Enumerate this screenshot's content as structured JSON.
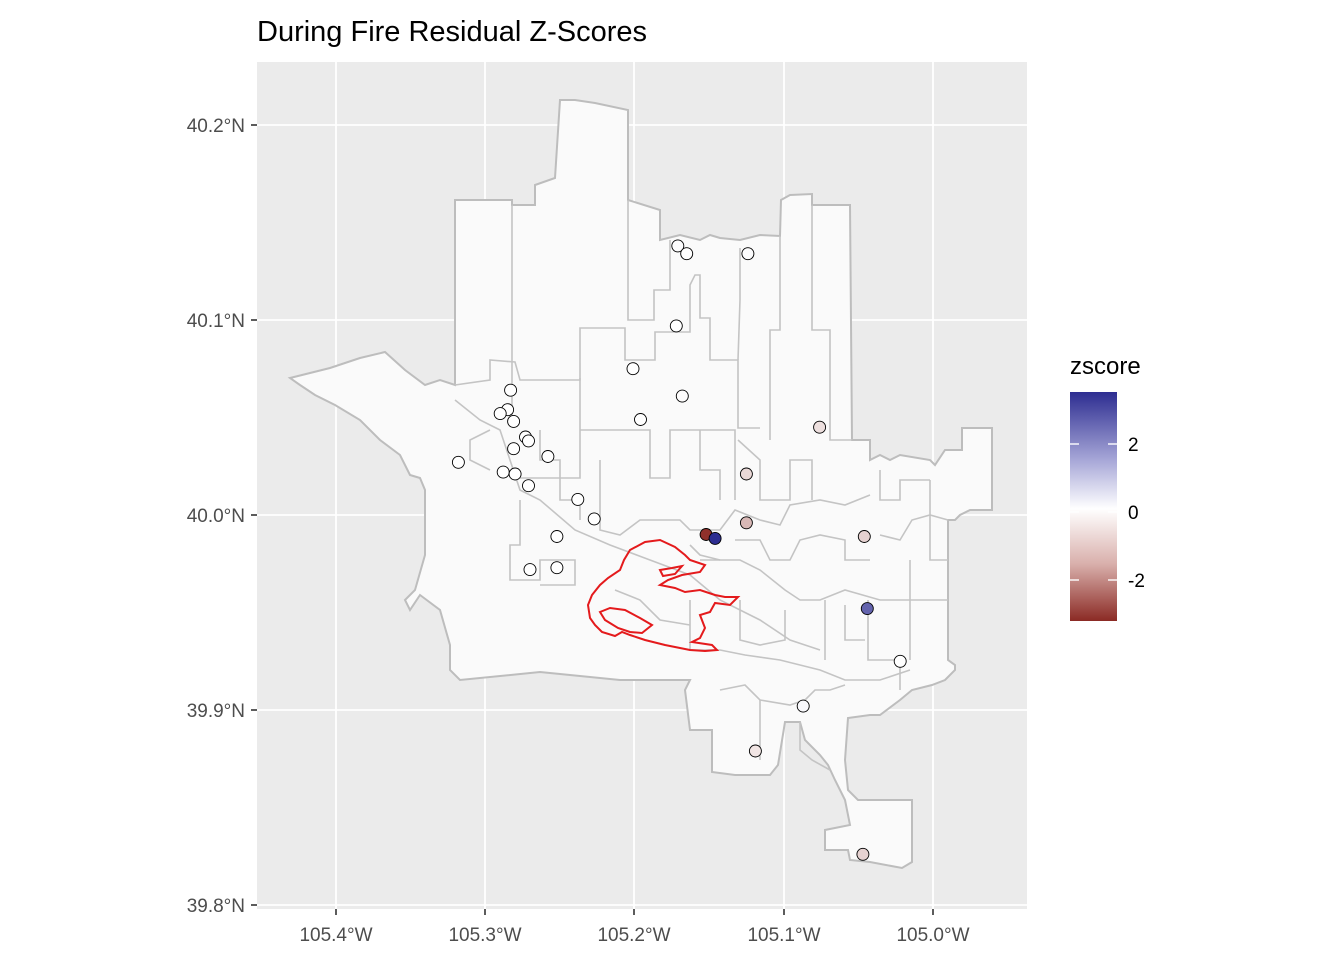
{
  "title": "During Fire Residual Z-Scores",
  "colors": {
    "panel": "#EBEBEB",
    "grid": "#FFFFFF",
    "land": "#FAFAFA",
    "boundary": "#BDBDBD",
    "fire": "#E41A1C",
    "low": "#8B2A24",
    "mid": "#FFFFFF",
    "high": "#2D2D91"
  },
  "chart_data": {
    "type": "map-points",
    "x_axis": {
      "range": [
        -105.455,
        -104.942
      ],
      "ticks": [
        -105.4,
        -105.3,
        -105.2,
        -105.1,
        -105.0
      ],
      "tick_labels": [
        "105.4°W",
        "105.3°W",
        "105.2°W",
        "105.1°W",
        "105.0°W"
      ]
    },
    "y_axis": {
      "range": [
        39.798,
        40.231
      ],
      "ticks": [
        39.8,
        39.9,
        40.0,
        40.1,
        40.2
      ],
      "tick_labels": [
        "39.8°N",
        "39.9°N",
        "40.0°N",
        "40.1°N",
        "40.2°N"
      ]
    },
    "legend": {
      "title": "zscore",
      "position": "right",
      "range": [
        -3.3,
        3.5
      ],
      "breaks": [
        2,
        0,
        -2
      ],
      "break_labels": [
        "2",
        "0",
        "-2"
      ]
    },
    "points": [
      {
        "lon": -105.171,
        "lat": 40.138,
        "z": 0.05
      },
      {
        "lon": -105.165,
        "lat": 40.134,
        "z": 0.0
      },
      {
        "lon": -105.124,
        "lat": 40.134,
        "z": 0.05
      },
      {
        "lon": -105.172,
        "lat": 40.097,
        "z": 0.0
      },
      {
        "lon": -105.201,
        "lat": 40.075,
        "z": 0.0
      },
      {
        "lon": -105.168,
        "lat": 40.061,
        "z": -0.05
      },
      {
        "lon": -105.283,
        "lat": 40.064,
        "z": 0.0
      },
      {
        "lon": -105.285,
        "lat": 40.054,
        "z": 0.0
      },
      {
        "lon": -105.29,
        "lat": 40.052,
        "z": 0.0
      },
      {
        "lon": -105.281,
        "lat": 40.048,
        "z": 0.0
      },
      {
        "lon": -105.196,
        "lat": 40.049,
        "z": 0.0
      },
      {
        "lon": -105.273,
        "lat": 40.04,
        "z": 0.0
      },
      {
        "lon": -105.271,
        "lat": 40.038,
        "z": 0.0
      },
      {
        "lon": -105.281,
        "lat": 40.034,
        "z": 0.0
      },
      {
        "lon": -105.258,
        "lat": 40.03,
        "z": 0.0
      },
      {
        "lon": -105.318,
        "lat": 40.027,
        "z": 0.0
      },
      {
        "lon": -105.288,
        "lat": 40.022,
        "z": 0.0
      },
      {
        "lon": -105.28,
        "lat": 40.021,
        "z": 0.0
      },
      {
        "lon": -105.271,
        "lat": 40.015,
        "z": 0.0
      },
      {
        "lon": -105.238,
        "lat": 40.008,
        "z": 0.0
      },
      {
        "lon": -105.227,
        "lat": 39.998,
        "z": 0.0
      },
      {
        "lon": -105.252,
        "lat": 39.989,
        "z": 0.0
      },
      {
        "lon": -105.27,
        "lat": 39.972,
        "z": 0.0
      },
      {
        "lon": -105.252,
        "lat": 39.973,
        "z": 0.0
      },
      {
        "lon": -105.076,
        "lat": 40.045,
        "z": -0.5
      },
      {
        "lon": -105.125,
        "lat": 40.021,
        "z": -0.6
      },
      {
        "lon": -105.125,
        "lat": 39.996,
        "z": -1.1
      },
      {
        "lon": -105.152,
        "lat": 39.99,
        "z": -3.2
      },
      {
        "lon": -105.146,
        "lat": 39.988,
        "z": 3.5
      },
      {
        "lon": -105.046,
        "lat": 39.989,
        "z": -0.7
      },
      {
        "lon": -105.044,
        "lat": 39.952,
        "z": 2.6
      },
      {
        "lon": -105.022,
        "lat": 39.925,
        "z": 0.0
      },
      {
        "lon": -105.087,
        "lat": 39.902,
        "z": 0.1
      },
      {
        "lon": -105.119,
        "lat": 39.879,
        "z": -0.4
      },
      {
        "lon": -105.047,
        "lat": 39.826,
        "z": -0.7
      }
    ]
  }
}
